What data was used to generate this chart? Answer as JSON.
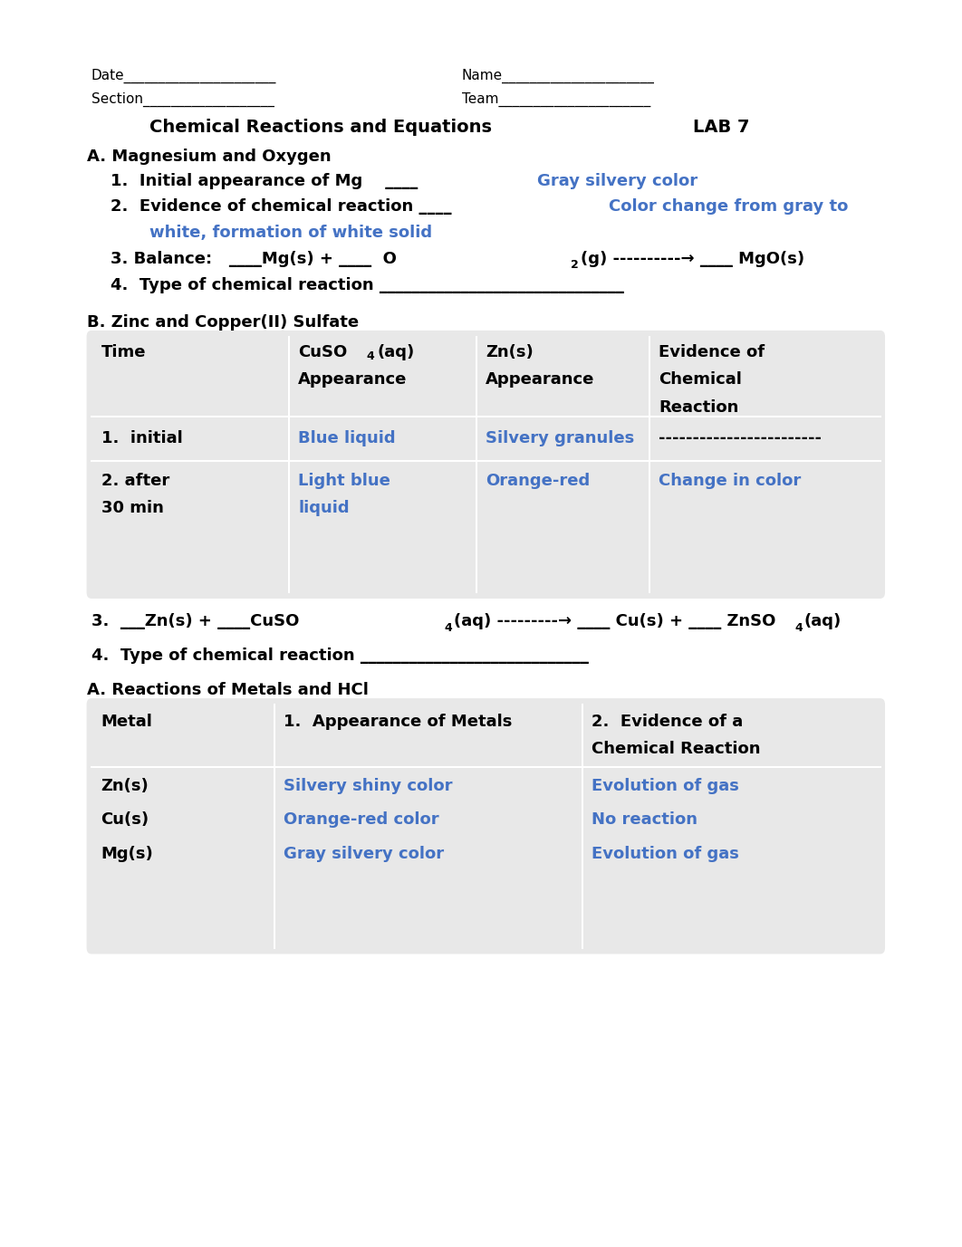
{
  "bg_color": "#ffffff",
  "black": "#000000",
  "blue": "#4472C4",
  "title": "Chemical Reactions and Equations",
  "lab": "LAB 7",
  "section_a_title": "A. Magnesium and Oxygen",
  "item1_black": "1.  Initial appearance of Mg    ____",
  "item1_blue": "Gray silvery color",
  "item2_black": "2.  Evidence of chemical reaction ____",
  "item2_blue1": "Color change from gray to",
  "item2_blue2": "white, formation of white solid",
  "item4": "4.  Type of chemical reaction ______________________________",
  "section_b_title": "B. Zinc and Copper(II) Sulfate",
  "table1_bg": "#e8e8e8",
  "table1_row1_col1": "1.  initial",
  "table1_row1_col2": "Blue liquid",
  "table1_row1_col3": "Silvery granules",
  "table1_row1_col4": "------------------------",
  "table1_row2_col1a": "2. after",
  "table1_row2_col1b": "30 min",
  "table1_row2_col2a": "Light blue",
  "table1_row2_col2b": "liquid",
  "table1_row2_col3": "Orange-red",
  "table1_row2_col4": "Change in color",
  "item4b": "4.  Type of chemical reaction ____________________________",
  "section_c_title": "A. Reactions of Metals and HCl",
  "table2_bg": "#e8e8e8",
  "table2_rows": [
    [
      "Zn(s)",
      "Silvery shiny color",
      "Evolution of gas"
    ],
    [
      "Cu(s)",
      "Orange-red color",
      "No reaction"
    ],
    [
      "Mg(s)",
      "Gray silvery color",
      "Evolution of gas"
    ]
  ]
}
